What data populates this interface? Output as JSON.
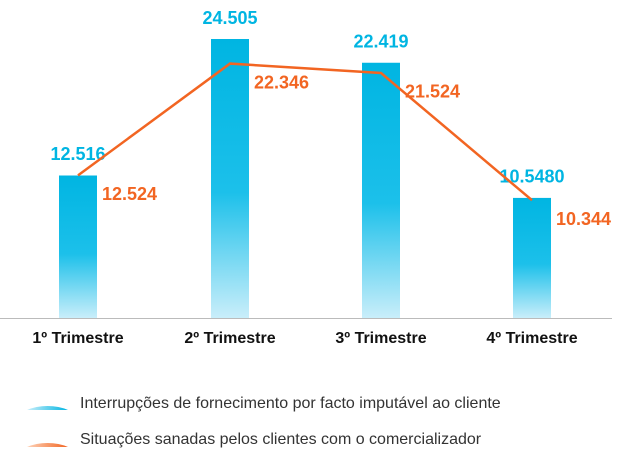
{
  "chart_data": {
    "type": "bar",
    "categories": [
      "1º Trimestre",
      "2º Trimestre",
      "3º Trimestre",
      "4º Trimestre"
    ],
    "series": [
      {
        "name": "Interrupções de fornecimento por facto imputável ao cliente",
        "type": "bar",
        "color": "#00b5e2",
        "values": [
          12.516,
          24.505,
          22.419,
          10.548
        ],
        "value_labels": [
          "12.516",
          "24.505",
          "22.419",
          "10.5480"
        ]
      },
      {
        "name": "Situações sanadas pelos clientes com o comercializador",
        "type": "line",
        "color": "#f26522",
        "values": [
          12.524,
          22.346,
          21.524,
          10.344
        ]
      }
    ]
  }
}
